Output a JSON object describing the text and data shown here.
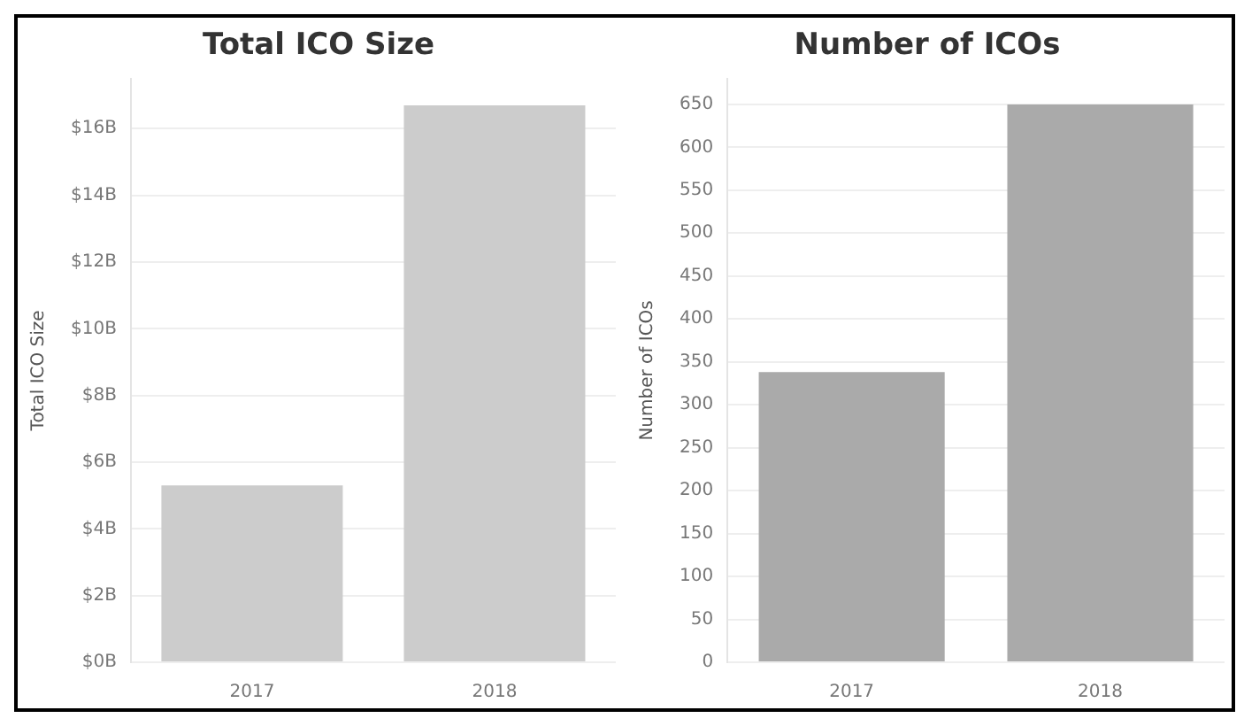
{
  "chart_data": [
    {
      "type": "bar",
      "title": "Total ICO Size",
      "ylabel": "Total ICO Size",
      "categories": [
        "2017",
        "2018"
      ],
      "values": [
        5.3,
        16.7
      ],
      "color": "#cccccc",
      "ylim": [
        0,
        17.5
      ],
      "yticks": [
        {
          "value": 0,
          "label": "$0B"
        },
        {
          "value": 2,
          "label": "$2B"
        },
        {
          "value": 4,
          "label": "$4B"
        },
        {
          "value": 6,
          "label": "$6B"
        },
        {
          "value": 8,
          "label": "$8B"
        },
        {
          "value": 10,
          "label": "$10B"
        },
        {
          "value": 12,
          "label": "$12B"
        },
        {
          "value": 14,
          "label": "$14B"
        },
        {
          "value": 16,
          "label": "$16B"
        }
      ],
      "grid": "y",
      "legend": false
    },
    {
      "type": "bar",
      "title": "Number of ICOs",
      "ylabel": "Number of ICOs",
      "categories": [
        "2017",
        "2018"
      ],
      "values": [
        338,
        650
      ],
      "color": "#aaaaaa",
      "ylim": [
        0,
        680
      ],
      "yticks": [
        0,
        50,
        100,
        150,
        200,
        250,
        300,
        350,
        400,
        450,
        500,
        550,
        600,
        650
      ],
      "grid": "y",
      "legend": false
    }
  ]
}
